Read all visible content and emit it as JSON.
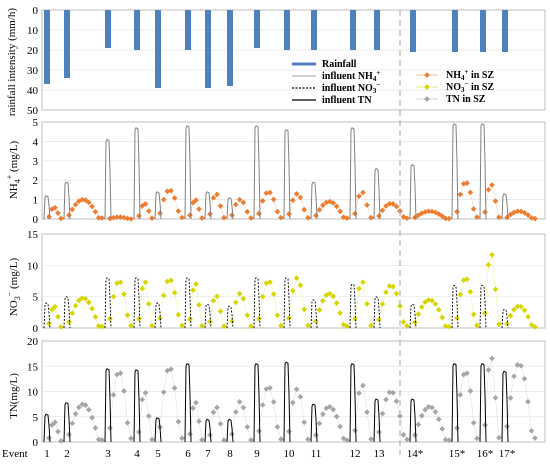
{
  "chart_data": [
    {
      "type": "bar",
      "panel": "rainfall",
      "ylabel": "rainfall intensity (mm/h)",
      "ylim": [
        0,
        50
      ],
      "yticks": [
        "0",
        "10",
        "20",
        "30",
        "40",
        "50"
      ],
      "inverted": true,
      "x": [
        1,
        2,
        3,
        4,
        5,
        6,
        7,
        8,
        9,
        10,
        11,
        12,
        13,
        14,
        15,
        16,
        17
      ],
      "values": [
        37,
        34,
        19,
        20,
        39,
        20,
        39,
        38,
        19,
        20,
        20,
        20,
        20,
        21,
        21,
        21,
        21
      ],
      "color": "#4f81bd"
    },
    {
      "type": "line",
      "panel": "nh4",
      "ylabel": "NH4+ (mg/L)",
      "ylim": [
        0,
        5
      ],
      "yticks": [
        "0",
        "1",
        "2",
        "3",
        "4",
        "5"
      ],
      "series": [
        {
          "name": "influent NH4+",
          "color": "#808080",
          "peaks": [
            [
              1,
              1.2
            ],
            [
              2,
              1.9
            ],
            [
              3,
              4.1
            ],
            [
              4,
              4.7
            ],
            [
              5,
              1.4
            ],
            [
              6,
              4.8
            ],
            [
              7,
              1.4
            ],
            [
              8,
              1.1
            ],
            [
              9,
              4.8
            ],
            [
              10,
              4.6
            ],
            [
              11,
              1.9
            ],
            [
              12,
              4.7
            ],
            [
              13,
              2.6
            ],
            [
              14,
              2.8
            ],
            [
              15,
              4.9
            ],
            [
              16,
              4.9
            ],
            [
              17,
              1.3
            ]
          ]
        },
        {
          "name": "NH4+ in SZ",
          "color": "#ed7d31",
          "values": [
            [
              1,
              0.6
            ],
            [
              2,
              1.0
            ],
            [
              3,
              0.1
            ],
            [
              4,
              0.8
            ],
            [
              5,
              1.5
            ],
            [
              6,
              1.0
            ],
            [
              7,
              1.3
            ],
            [
              8,
              1.0
            ],
            [
              9,
              1.4
            ],
            [
              10,
              1.3
            ],
            [
              11,
              0.9
            ],
            [
              12,
              1.4
            ],
            [
              13,
              0.8
            ],
            [
              14,
              0.4
            ],
            [
              15,
              1.9
            ],
            [
              16,
              1.8
            ],
            [
              17,
              0.4
            ]
          ]
        }
      ]
    },
    {
      "type": "line",
      "panel": "no3",
      "ylabel": "NO3- (mg/L)",
      "ylim": [
        0,
        15
      ],
      "yticks": [
        "0",
        "5",
        "10",
        "15"
      ],
      "series": [
        {
          "name": "influent NO3-",
          "color": "#000000",
          "dash": true,
          "peaks": [
            [
              1,
              4.0
            ],
            [
              2,
              5.0
            ],
            [
              3,
              8.0
            ],
            [
              4,
              8.0
            ],
            [
              5,
              4.0
            ],
            [
              6,
              8.0
            ],
            [
              7,
              3.8
            ],
            [
              8,
              3.5
            ],
            [
              9,
              8.0
            ],
            [
              10,
              8.0
            ],
            [
              11,
              4.5
            ],
            [
              12,
              7.0
            ],
            [
              13,
              5.0
            ],
            [
              14,
              3.8
            ],
            [
              15,
              6.8
            ],
            [
              16,
              6.8
            ],
            [
              17,
              3.0
            ]
          ]
        },
        {
          "name": "NO3- in SZ",
          "color": "#d6d600",
          "values": [
            [
              1,
              3.5
            ],
            [
              2,
              4.8
            ],
            [
              3,
              7.5
            ],
            [
              4,
              7.5
            ],
            [
              5,
              7.8
            ],
            [
              6,
              7.2
            ],
            [
              7,
              5.2
            ],
            [
              8,
              5.5
            ],
            [
              9,
              7.5
            ],
            [
              10,
              8.0
            ],
            [
              11,
              5.5
            ],
            [
              12,
              7.5
            ],
            [
              13,
              6.8
            ],
            [
              14,
              4.5
            ],
            [
              15,
              8.0
            ],
            [
              16,
              12.0
            ],
            [
              17,
              3.5
            ]
          ]
        }
      ]
    },
    {
      "type": "line",
      "panel": "tn",
      "ylabel": "TN(mg/L)",
      "ylim": [
        0,
        20
      ],
      "yticks": [
        "0",
        "5",
        "10",
        "15",
        "20"
      ],
      "series": [
        {
          "name": "influent TN",
          "color": "#000000",
          "peaks": [
            [
              1,
              5.5
            ],
            [
              2,
              7.8
            ],
            [
              3,
              14.5
            ],
            [
              4,
              14.3
            ],
            [
              5,
              4.8
            ],
            [
              6,
              15.5
            ],
            [
              7,
              4.5
            ],
            [
              8,
              4.5
            ],
            [
              9,
              15.5
            ],
            [
              10,
              15.8
            ],
            [
              11,
              7.5
            ],
            [
              12,
              15.5
            ],
            [
              13,
              8.5
            ],
            [
              14,
              8.5
            ],
            [
              15,
              15.5
            ],
            [
              16,
              15.5
            ],
            [
              17,
              14.0
            ]
          ]
        },
        {
          "name": "TN in SZ",
          "color": "#a6a6a6",
          "values": [
            [
              1,
              4.0
            ],
            [
              2,
              7.5
            ],
            [
              3,
              14.0
            ],
            [
              4,
              10.0
            ],
            [
              5,
              14.8
            ],
            [
              6,
              8.0
            ],
            [
              7,
              7.0
            ],
            [
              8,
              8.0
            ],
            [
              9,
              11.0
            ],
            [
              10,
              10.5
            ],
            [
              11,
              7.0
            ],
            [
              12,
              11.5
            ],
            [
              13,
              10.0
            ],
            [
              14,
              7.0
            ],
            [
              15,
              14.0
            ],
            [
              16,
              17.0
            ],
            [
              17,
              15.5
            ]
          ]
        }
      ]
    }
  ],
  "x_axis": {
    "lead_label": "Event",
    "labels": [
      "1",
      "2",
      "3",
      "4",
      "5",
      "6",
      "7",
      "8",
      "9",
      "10",
      "11",
      "12",
      "13",
      "14*",
      "15*",
      "16*",
      "17*"
    ]
  },
  "legend": {
    "left": [
      {
        "label": "Rainfall",
        "style": "bar",
        "color": "#4f81bd"
      },
      {
        "label": "influent NH",
        "sup": "+",
        "sub": "4",
        "style": "thin",
        "color": "#808080"
      },
      {
        "label": "influent NO",
        "sup": "−",
        "sub": "3",
        "style": "dash",
        "color": "#000000"
      },
      {
        "label": "influent TN",
        "style": "solid",
        "color": "#000000"
      }
    ],
    "right": [
      {
        "label": "NH",
        "sup": "+",
        "sub": "4",
        "tail": " in SZ",
        "color": "#ed7d31"
      },
      {
        "label": "NO",
        "sup": "−",
        "sub": "3",
        "tail": " in SZ",
        "color": "#d6d600"
      },
      {
        "label": "TN in SZ",
        "color": "#a6a6a6"
      }
    ]
  },
  "ylabels": {
    "rain": "rainfall intensity (mm/h)",
    "nh4_main": "NH",
    "nh4_sub": "4",
    "nh4_sup": "+",
    "nh4_unit": " (mg/L)",
    "no3_main": "NO",
    "no3_sub": "3",
    "no3_sup": "−",
    "no3_unit": " (mg/L)",
    "tn": "TN(mg/L)"
  }
}
